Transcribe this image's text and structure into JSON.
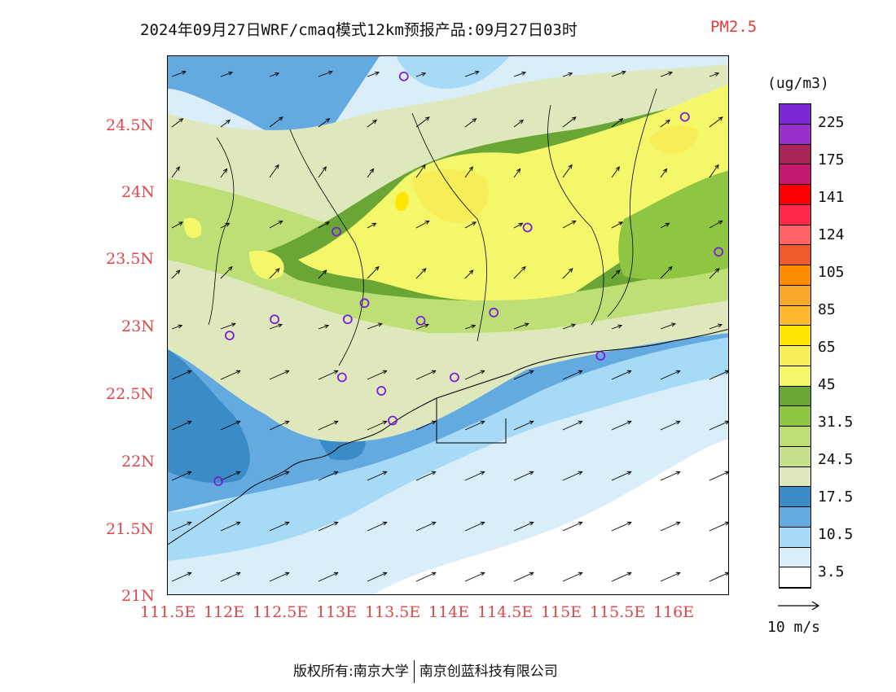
{
  "title": {
    "main": "2024年09月27日WRF/cmaq模式12km预报产品:09月27日03时",
    "variable": "PM2.5"
  },
  "axes": {
    "y_ticks": [
      "24.5N",
      "24N",
      "23.5N",
      "23N",
      "22.5N",
      "22N",
      "21.5N",
      "21N"
    ],
    "x_ticks": [
      "111.5E",
      "112E",
      "112.5E",
      "113E",
      "113.5E",
      "114E",
      "114.5E",
      "115E",
      "115.5E",
      "116E"
    ],
    "lon_range": [
      111.5,
      116.5
    ],
    "lat_range": [
      21,
      25
    ],
    "label_color": "#e0484b"
  },
  "legend": {
    "unit": "(ug/m3)",
    "labels": [
      "225",
      "175",
      "141",
      "124",
      "105",
      "85",
      "65",
      "45",
      "31.5",
      "24.5",
      "17.5",
      "10.5",
      "3.5"
    ],
    "colors_top_to_bottom": [
      "#7b28d6",
      "#9b2fc9",
      "#a8255a",
      "#c4196f",
      "#ff0000",
      "#ff2a4a",
      "#ff6262",
      "#f05a2a",
      "#ff8c00",
      "#f9a82a",
      "#ffb830",
      "#ffe400",
      "#f7ee57",
      "#f5f76b",
      "#6aa636",
      "#8ec641",
      "#bedf75",
      "#c5e08b",
      "#dfe8bd",
      "#3b8cc6",
      "#62aae0",
      "#a6daf6",
      "#d9eef8",
      "#ffffff"
    ]
  },
  "reference_vector": {
    "label": "10 m/s"
  },
  "stations": [
    {
      "lon": 113.6,
      "lat": 24.85
    },
    {
      "lon": 116.1,
      "lat": 24.55
    },
    {
      "lon": 113.0,
      "lat": 23.7
    },
    {
      "lon": 114.7,
      "lat": 23.73
    },
    {
      "lon": 116.4,
      "lat": 23.55
    },
    {
      "lon": 113.25,
      "lat": 23.17
    },
    {
      "lon": 112.45,
      "lat": 23.05
    },
    {
      "lon": 113.1,
      "lat": 23.05
    },
    {
      "lon": 113.75,
      "lat": 23.04
    },
    {
      "lon": 114.4,
      "lat": 23.1
    },
    {
      "lon": 112.05,
      "lat": 22.93
    },
    {
      "lon": 113.05,
      "lat": 22.62
    },
    {
      "lon": 113.4,
      "lat": 22.52
    },
    {
      "lon": 114.05,
      "lat": 22.62
    },
    {
      "lon": 113.5,
      "lat": 22.3
    },
    {
      "lon": 115.35,
      "lat": 22.78
    },
    {
      "lon": 111.95,
      "lat": 21.85
    }
  ],
  "footer": {
    "left": "版权所有:南京大学",
    "right": "南京创蓝科技有限公司"
  }
}
